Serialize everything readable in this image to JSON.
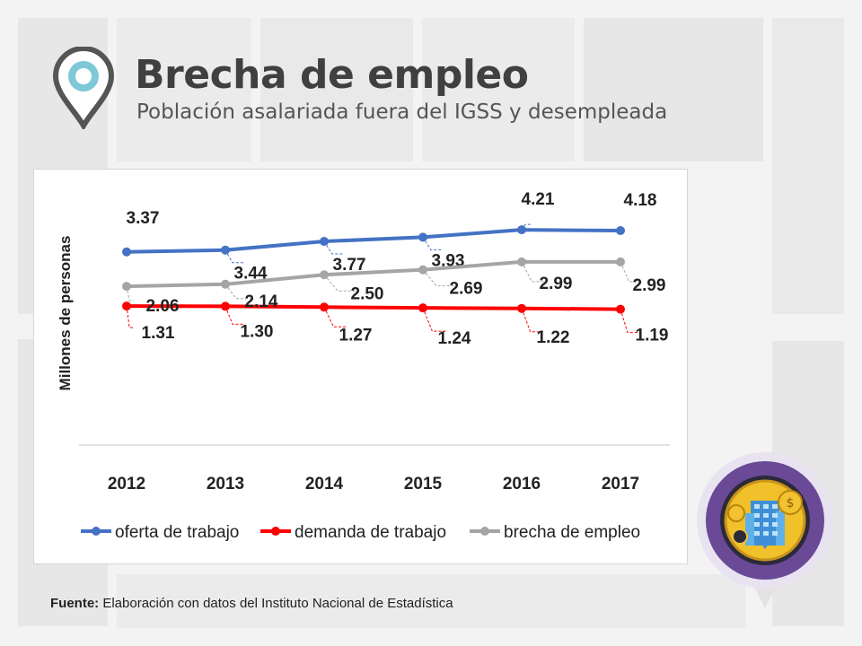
{
  "header": {
    "title": "Brecha de empleo",
    "subtitle": "Población asalariada fuera del IGSS y desempleada"
  },
  "footer": {
    "source_label": "Fuente:",
    "source_text": "Elaboración con datos del Instituto Nacional de Estadística"
  },
  "colors": {
    "oferta": "#4472c4",
    "demanda": "#ff0000",
    "brecha": "#a5a5a5",
    "title": "#404040",
    "badge_outer": "#7b5aa6",
    "badge_inner": "#e8b322"
  },
  "chart_data": {
    "type": "line",
    "title": "",
    "xlabel": "",
    "ylabel": "Millones de personas",
    "categories": [
      "2012",
      "2013",
      "2014",
      "2015",
      "2016",
      "2017"
    ],
    "ylim": [
      0,
      5
    ],
    "grid": false,
    "legend": "bottom",
    "series": [
      {
        "name": "oferta de trabajo",
        "key": "oferta",
        "values": [
          3.37,
          3.44,
          3.77,
          3.93,
          4.21,
          4.18
        ],
        "labels": [
          "3.37",
          "3.44",
          "3.77",
          "3.93",
          "4.21",
          "4.18"
        ]
      },
      {
        "name": "demanda de trabajo",
        "key": "demanda",
        "values": [
          1.31,
          1.3,
          1.27,
          1.24,
          1.22,
          1.19
        ],
        "labels": [
          "1.31",
          "1.30",
          "1.27",
          "1.24",
          "1.22",
          "1.19"
        ]
      },
      {
        "name": "brecha de empleo",
        "key": "brecha",
        "values": [
          2.06,
          2.14,
          2.5,
          2.69,
          2.99,
          2.99
        ],
        "labels": [
          "2.06",
          "2.14",
          "2.50",
          "2.69",
          "2.99",
          "2.99"
        ]
      }
    ]
  }
}
